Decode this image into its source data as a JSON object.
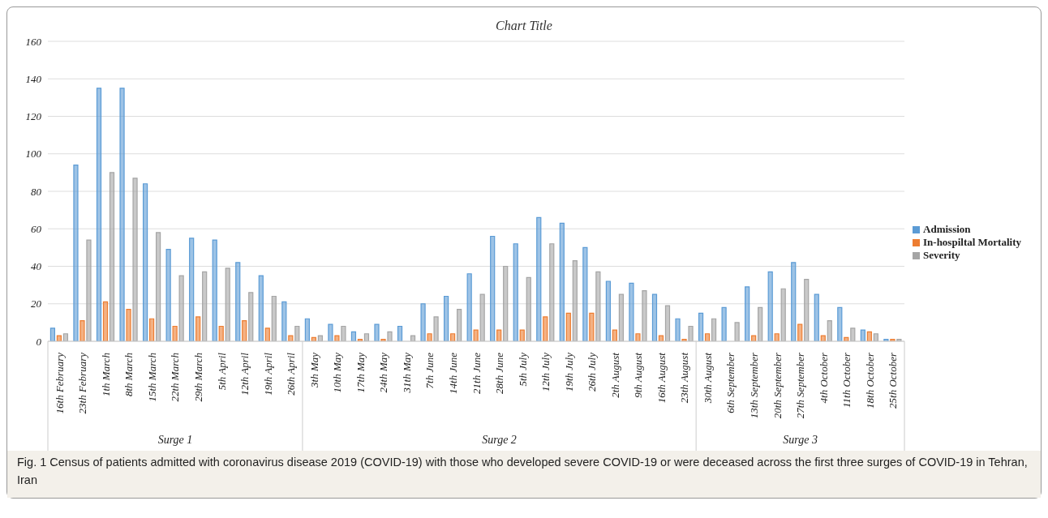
{
  "chart_data": {
    "type": "bar",
    "title": "Chart Title",
    "categories": [
      "16th February",
      "23th February",
      "1th March",
      "8th March",
      "15th March",
      "22th March",
      "29th March",
      "5th April",
      "12th April",
      "19th April",
      "26th April",
      "3th May",
      "10th May",
      "17th May",
      "24th May",
      "31th May",
      "7th June",
      "14th June",
      "21th June",
      "28th June",
      "5th July",
      "12th July",
      "19th July",
      "26th July",
      "2th August",
      "9th August",
      "16th August",
      "23th August",
      "30th August",
      "6th September",
      "13th September",
      "20th September",
      "27th September",
      "4th October",
      "11th October",
      "18th October",
      "25th October"
    ],
    "series": [
      {
        "name": "Admission",
        "color": "#5b9bd5",
        "values": [
          7,
          94,
          135,
          135,
          84,
          49,
          55,
          54,
          42,
          35,
          21,
          12,
          9,
          5,
          9,
          8,
          20,
          24,
          36,
          56,
          52,
          66,
          63,
          50,
          32,
          31,
          25,
          12,
          15,
          18,
          29,
          37,
          42,
          25,
          18,
          6,
          1
        ]
      },
      {
        "name": "In-hospiltal Mortality",
        "color": "#ed7d31",
        "values": [
          3,
          11,
          21,
          17,
          12,
          8,
          13,
          8,
          11,
          7,
          3,
          2,
          3,
          1,
          1,
          0,
          4,
          4,
          6,
          6,
          6,
          13,
          15,
          15,
          6,
          4,
          3,
          1,
          4,
          0,
          3,
          4,
          9,
          3,
          2,
          5,
          1
        ]
      },
      {
        "name": "Severity",
        "color": "#a5a5a5",
        "values": [
          4,
          54,
          90,
          87,
          58,
          35,
          37,
          39,
          26,
          24,
          8,
          3,
          8,
          4,
          5,
          3,
          13,
          17,
          25,
          40,
          34,
          52,
          43,
          37,
          25,
          27,
          19,
          8,
          12,
          10,
          18,
          28,
          33,
          11,
          7,
          4,
          1
        ]
      }
    ],
    "ylim": [
      0,
      160
    ],
    "yticks": [
      0,
      20,
      40,
      60,
      80,
      100,
      120,
      140,
      160
    ],
    "grid": "y",
    "legend": "right",
    "annotations": [
      "Surge 1",
      "Surge 2",
      "Surge 3",
      "Fig. 1  Census of patients admitted with coronavirus disease 2019 (COVID-19) with those who developed severe COVID-19 or were deceased across the first three surges of COVID-19 in Tehran, Iran"
    ]
  }
}
